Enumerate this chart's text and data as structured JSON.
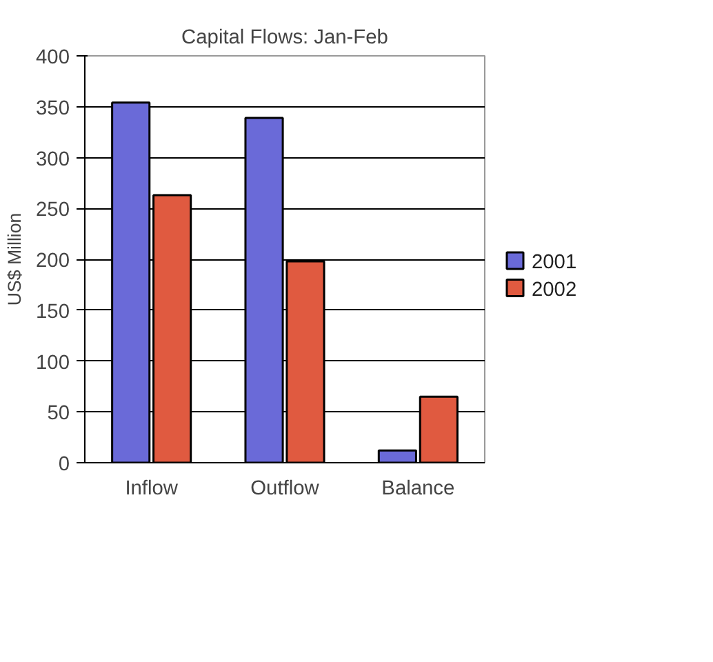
{
  "chart_data": {
    "type": "bar",
    "title": "Capital Flows: Jan-Feb",
    "ylabel": "US$ Million",
    "categories": [
      "Inflow",
      "Outflow",
      "Balance"
    ],
    "series": [
      {
        "name": "2001",
        "color": "#6a6ad8",
        "values": [
          354,
          339,
          12
        ]
      },
      {
        "name": "2002",
        "color": "#e05a40",
        "values": [
          263,
          198,
          65
        ]
      }
    ],
    "ylim": [
      0,
      400
    ],
    "yticks": [
      0,
      50,
      100,
      150,
      200,
      250,
      300,
      350,
      400
    ],
    "grid": "y",
    "legend": "right"
  }
}
